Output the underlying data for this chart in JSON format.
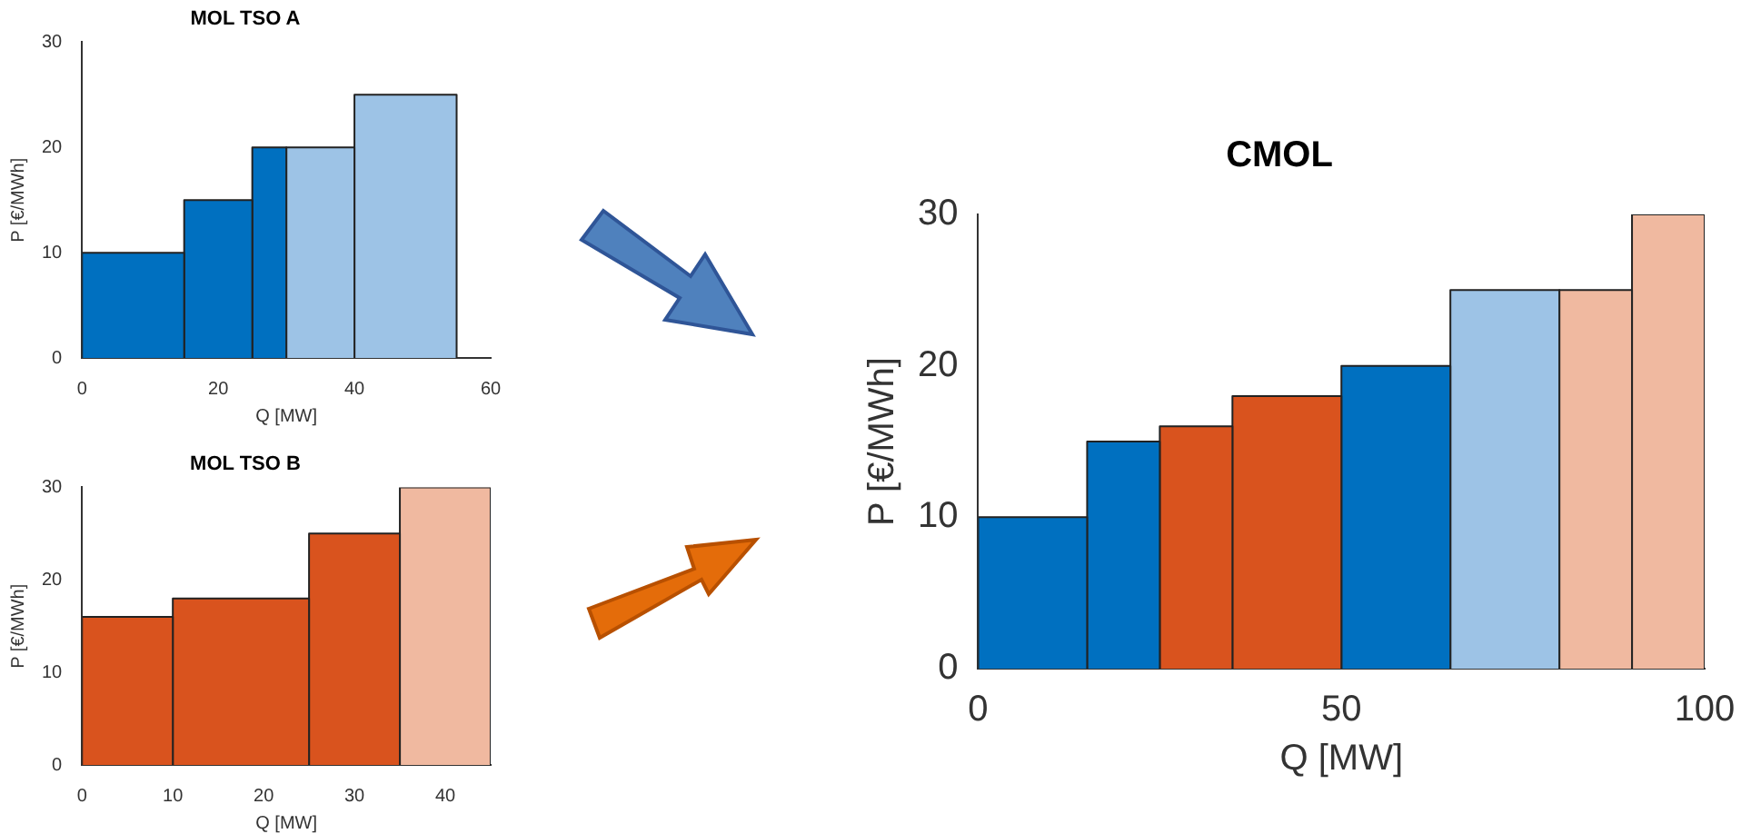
{
  "chart_data": [
    {
      "type": "histogram",
      "title": "MOL TSO A",
      "xlabel": "Q [MW]",
      "ylabel": "P [€/MWh]",
      "bins": [
        0,
        15,
        25,
        30,
        40,
        55
      ],
      "values": [
        10,
        15,
        20,
        20,
        25
      ],
      "colors": [
        "#0070c0",
        "#0070c0",
        "#0070c0",
        "#9dc3e6",
        "#9dc3e6"
      ],
      "xlim": [
        0,
        60
      ],
      "xticks": [
        0,
        20,
        40,
        60
      ],
      "ylim": [
        0,
        30
      ],
      "yticks": [
        0,
        10,
        20,
        30
      ],
      "grid": false
    },
    {
      "type": "histogram",
      "title": "MOL TSO B",
      "xlabel": "Q [MW]",
      "ylabel": "P [€/MWh]",
      "bins": [
        0,
        10,
        25,
        35,
        45
      ],
      "values": [
        16,
        18,
        25,
        30
      ],
      "colors": [
        "#d9531e",
        "#d9531e",
        "#d9531e",
        "#f0b9a0"
      ],
      "xlim": [
        0,
        45
      ],
      "xticks": [
        0,
        10,
        20,
        30,
        40
      ],
      "ylim": [
        0,
        30
      ],
      "yticks": [
        0,
        10,
        20,
        30
      ],
      "grid": false
    },
    {
      "type": "histogram",
      "title": "CMOL",
      "xlabel": "Q [MW]",
      "ylabel": "P [€/MWh]",
      "bins": [
        0,
        15,
        25,
        35,
        50,
        65,
        80,
        90,
        100
      ],
      "values": [
        10,
        15,
        16,
        18,
        20,
        25,
        25,
        30
      ],
      "colors": [
        "#0070c0",
        "#0070c0",
        "#d9531e",
        "#d9531e",
        "#0070c0",
        "#9dc3e6",
        "#f0b9a0",
        "#f0b9a0"
      ],
      "xlim": [
        0,
        100
      ],
      "xticks": [
        0,
        50,
        100
      ],
      "ylim": [
        0,
        30
      ],
      "yticks": [
        0,
        10,
        20,
        30
      ],
      "grid": false
    }
  ]
}
